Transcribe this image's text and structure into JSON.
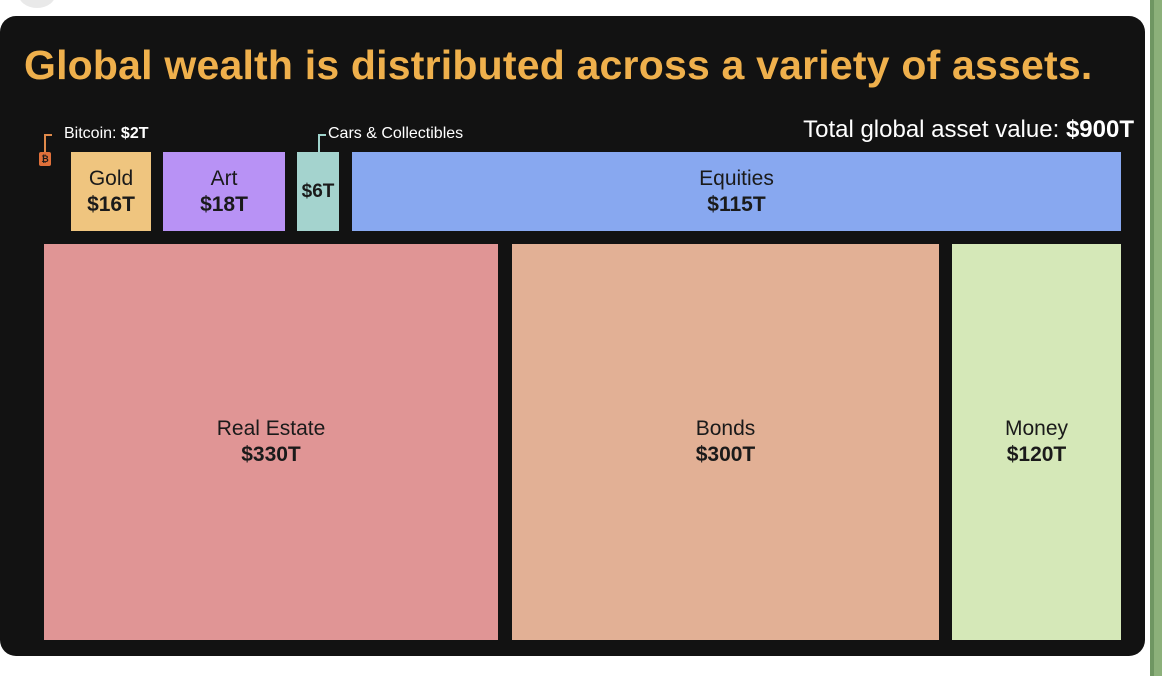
{
  "title": "Global wealth is distributed across a variety of assets.",
  "total": {
    "label": "Total global asset value:",
    "value": "$900T"
  },
  "callouts": {
    "bitcoin": {
      "label": "Bitcoin:",
      "value": "$2T"
    },
    "cars": {
      "label": "Cars & Collectibles"
    }
  },
  "btc_icon": "bitcoin-icon",
  "chart_data": {
    "type": "treemap",
    "title": "Global wealth is distributed across a variety of assets.",
    "unit": "trillion USD",
    "total": 900,
    "items": [
      {
        "name": "Bitcoin",
        "value": 2,
        "value_label": "$2T",
        "color": "#e0703a"
      },
      {
        "name": "Gold",
        "value": 16,
        "value_label": "$16T",
        "color": "#efc57f"
      },
      {
        "name": "Art",
        "value": 18,
        "value_label": "$18T",
        "color": "#b892f5"
      },
      {
        "name": "Cars & Collectibles",
        "value": 6,
        "value_label": "$6T",
        "color": "#a4d3ce"
      },
      {
        "name": "Equities",
        "value": 115,
        "value_label": "$115T",
        "color": "#88a8f0"
      },
      {
        "name": "Real Estate",
        "value": 330,
        "value_label": "$330T",
        "color": "#e09595"
      },
      {
        "name": "Bonds",
        "value": 300,
        "value_label": "$300T",
        "color": "#e2b095"
      },
      {
        "name": "Money",
        "value": 120,
        "value_label": "$120T",
        "color": "#d5e8b8"
      }
    ]
  }
}
